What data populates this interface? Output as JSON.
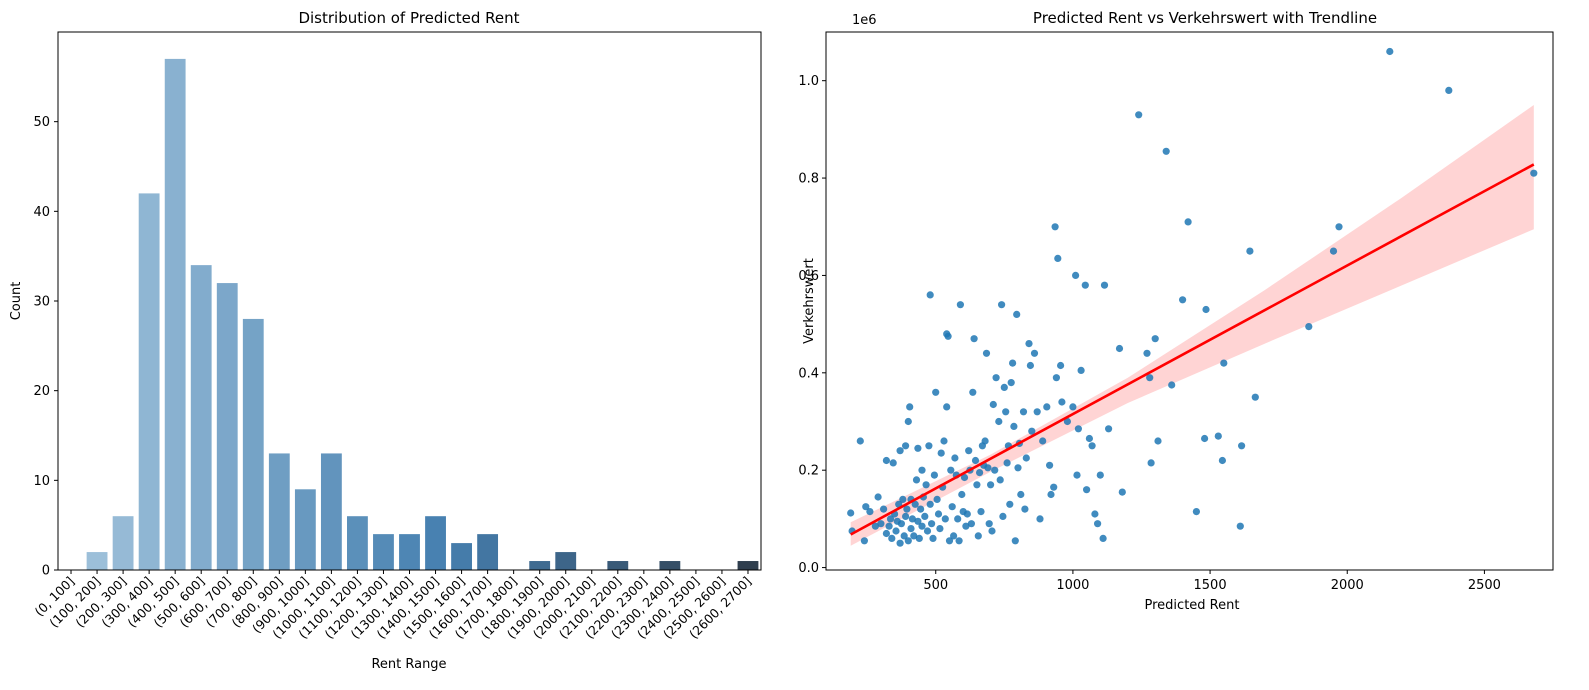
{
  "chart_data": [
    {
      "type": "bar",
      "title": "Distribution of Predicted Rent",
      "xlabel": "Rent Range",
      "ylabel": "Count",
      "ylim": [
        0,
        60
      ],
      "yticks": [
        0,
        10,
        20,
        30,
        40,
        50
      ],
      "categories": [
        "(0, 100]",
        "(100, 200]",
        "(200, 300]",
        "(300, 400]",
        "(400, 500]",
        "(500, 600]",
        "(600, 700]",
        "(700, 800]",
        "(800, 900]",
        "(900, 1000]",
        "(1000, 1100]",
        "(1100, 1200]",
        "(1200, 1300]",
        "(1300, 1400]",
        "(1400, 1500]",
        "(1500, 1600]",
        "(1600, 1700]",
        "(1700, 1800]",
        "(1800, 1900]",
        "(1900, 2000]",
        "(2000, 2100]",
        "(2100, 2200]",
        "(2200, 2300]",
        "(2300, 2400]",
        "(2400, 2500]",
        "(2500, 2600]",
        "(2600, 2700]"
      ],
      "values": [
        0,
        2,
        6,
        42,
        57,
        34,
        32,
        28,
        13,
        9,
        13,
        6,
        4,
        4,
        6,
        3,
        4,
        0,
        1,
        2,
        0,
        1,
        0,
        1,
        0,
        0,
        1
      ],
      "palette": "Blues_d",
      "grid": false
    },
    {
      "type": "scatter",
      "title": "Predicted Rent vs Verkehrswert with Trendline",
      "xlabel": "Predicted Rent",
      "ylabel": "Verkehrswert",
      "y_scale_label": "1e6",
      "xlim": [
        100,
        2750
      ],
      "ylim": [
        -0.005,
        1.1
      ],
      "xticks": [
        500,
        1000,
        1500,
        2000,
        2500
      ],
      "yticks": [
        0.0,
        0.2,
        0.4,
        0.6,
        0.8,
        1.0
      ],
      "ytick_labels": [
        "0.0",
        "0.2",
        "0.4",
        "0.6",
        "0.8",
        "1.0"
      ],
      "point_color": "#1f77b4",
      "trend_color": "#ff0000",
      "band_color": "#ffcccc",
      "trendline": {
        "x": [
          190,
          2680
        ],
        "y": [
          0.068,
          0.828
        ]
      },
      "confidence_band": {
        "x": [
          190,
          700,
          1200,
          1700,
          2200,
          2680
        ],
        "lower": [
          0.045,
          0.197,
          0.338,
          0.46,
          0.58,
          0.695
        ],
        "upper": [
          0.093,
          0.232,
          0.39,
          0.57,
          0.76,
          0.95
        ]
      },
      "points": [
        [
          190,
          0.112
        ],
        [
          195,
          0.075
        ],
        [
          225,
          0.26
        ],
        [
          240,
          0.055
        ],
        [
          245,
          0.125
        ],
        [
          260,
          0.115
        ],
        [
          280,
          0.085
        ],
        [
          290,
          0.145
        ],
        [
          300,
          0.09
        ],
        [
          310,
          0.12
        ],
        [
          320,
          0.07
        ],
        [
          320,
          0.22
        ],
        [
          330,
          0.085
        ],
        [
          335,
          0.1
        ],
        [
          340,
          0.06
        ],
        [
          345,
          0.215
        ],
        [
          350,
          0.11
        ],
        [
          355,
          0.075
        ],
        [
          360,
          0.095
        ],
        [
          365,
          0.13
        ],
        [
          370,
          0.05
        ],
        [
          370,
          0.24
        ],
        [
          375,
          0.09
        ],
        [
          380,
          0.14
        ],
        [
          385,
          0.065
        ],
        [
          390,
          0.105
        ],
        [
          390,
          0.25
        ],
        [
          395,
          0.12
        ],
        [
          400,
          0.055
        ],
        [
          400,
          0.3
        ],
        [
          405,
          0.33
        ],
        [
          410,
          0.08
        ],
        [
          410,
          0.14
        ],
        [
          415,
          0.1
        ],
        [
          420,
          0.065
        ],
        [
          425,
          0.13
        ],
        [
          430,
          0.18
        ],
        [
          435,
          0.095
        ],
        [
          435,
          0.245
        ],
        [
          440,
          0.06
        ],
        [
          445,
          0.12
        ],
        [
          450,
          0.085
        ],
        [
          450,
          0.2
        ],
        [
          455,
          0.145
        ],
        [
          460,
          0.105
        ],
        [
          465,
          0.17
        ],
        [
          470,
          0.075
        ],
        [
          475,
          0.25
        ],
        [
          480,
          0.13
        ],
        [
          480,
          0.56
        ],
        [
          485,
          0.09
        ],
        [
          490,
          0.06
        ],
        [
          495,
          0.19
        ],
        [
          500,
          0.36
        ],
        [
          505,
          0.14
        ],
        [
          510,
          0.11
        ],
        [
          515,
          0.08
        ],
        [
          520,
          0.235
        ],
        [
          525,
          0.165
        ],
        [
          530,
          0.26
        ],
        [
          535,
          0.1
        ],
        [
          540,
          0.33
        ],
        [
          540,
          0.48
        ],
        [
          545,
          0.475
        ],
        [
          550,
          0.055
        ],
        [
          555,
          0.2
        ],
        [
          560,
          0.125
        ],
        [
          565,
          0.065
        ],
        [
          570,
          0.225
        ],
        [
          575,
          0.19
        ],
        [
          580,
          0.1
        ],
        [
          585,
          0.055
        ],
        [
          590,
          0.54
        ],
        [
          595,
          0.15
        ],
        [
          600,
          0.115
        ],
        [
          605,
          0.185
        ],
        [
          610,
          0.085
        ],
        [
          615,
          0.11
        ],
        [
          620,
          0.24
        ],
        [
          625,
          0.2
        ],
        [
          630,
          0.09
        ],
        [
          635,
          0.36
        ],
        [
          640,
          0.47
        ],
        [
          645,
          0.22
        ],
        [
          650,
          0.17
        ],
        [
          655,
          0.065
        ],
        [
          660,
          0.195
        ],
        [
          665,
          0.115
        ],
        [
          670,
          0.25
        ],
        [
          675,
          0.21
        ],
        [
          680,
          0.26
        ],
        [
          685,
          0.44
        ],
        [
          690,
          0.205
        ],
        [
          695,
          0.09
        ],
        [
          700,
          0.17
        ],
        [
          705,
          0.075
        ],
        [
          710,
          0.335
        ],
        [
          715,
          0.2
        ],
        [
          720,
          0.39
        ],
        [
          730,
          0.3
        ],
        [
          735,
          0.18
        ],
        [
          740,
          0.54
        ],
        [
          745,
          0.105
        ],
        [
          750,
          0.37
        ],
        [
          755,
          0.32
        ],
        [
          760,
          0.215
        ],
        [
          765,
          0.25
        ],
        [
          770,
          0.13
        ],
        [
          775,
          0.38
        ],
        [
          780,
          0.42
        ],
        [
          785,
          0.29
        ],
        [
          790,
          0.055
        ],
        [
          795,
          0.52
        ],
        [
          800,
          0.205
        ],
        [
          805,
          0.255
        ],
        [
          810,
          0.15
        ],
        [
          820,
          0.32
        ],
        [
          825,
          0.12
        ],
        [
          830,
          0.225
        ],
        [
          840,
          0.46
        ],
        [
          845,
          0.415
        ],
        [
          850,
          0.28
        ],
        [
          860,
          0.44
        ],
        [
          870,
          0.32
        ],
        [
          880,
          0.1
        ],
        [
          890,
          0.26
        ],
        [
          905,
          0.33
        ],
        [
          915,
          0.21
        ],
        [
          920,
          0.15
        ],
        [
          930,
          0.165
        ],
        [
          935,
          0.7
        ],
        [
          940,
          0.39
        ],
        [
          945,
          0.635
        ],
        [
          955,
          0.415
        ],
        [
          960,
          0.34
        ],
        [
          980,
          0.3
        ],
        [
          1000,
          0.33
        ],
        [
          1010,
          0.6
        ],
        [
          1015,
          0.19
        ],
        [
          1020,
          0.285
        ],
        [
          1030,
          0.405
        ],
        [
          1045,
          0.58
        ],
        [
          1050,
          0.16
        ],
        [
          1060,
          0.265
        ],
        [
          1070,
          0.25
        ],
        [
          1080,
          0.11
        ],
        [
          1090,
          0.09
        ],
        [
          1100,
          0.19
        ],
        [
          1110,
          0.06
        ],
        [
          1115,
          0.58
        ],
        [
          1130,
          0.285
        ],
        [
          1170,
          0.45
        ],
        [
          1180,
          0.155
        ],
        [
          1240,
          0.93
        ],
        [
          1270,
          0.44
        ],
        [
          1280,
          0.39
        ],
        [
          1285,
          0.215
        ],
        [
          1300,
          0.47
        ],
        [
          1310,
          0.26
        ],
        [
          1340,
          0.855
        ],
        [
          1360,
          0.375
        ],
        [
          1400,
          0.55
        ],
        [
          1420,
          0.71
        ],
        [
          1450,
          0.115
        ],
        [
          1480,
          0.265
        ],
        [
          1485,
          0.53
        ],
        [
          1530,
          0.27
        ],
        [
          1545,
          0.22
        ],
        [
          1550,
          0.42
        ],
        [
          1610,
          0.085
        ],
        [
          1615,
          0.25
        ],
        [
          1645,
          0.65
        ],
        [
          1665,
          0.35
        ],
        [
          1860,
          0.495
        ],
        [
          1950,
          0.65
        ],
        [
          1970,
          0.7
        ],
        [
          2155,
          1.06
        ],
        [
          2370,
          0.98
        ],
        [
          2680,
          0.81
        ]
      ]
    }
  ]
}
